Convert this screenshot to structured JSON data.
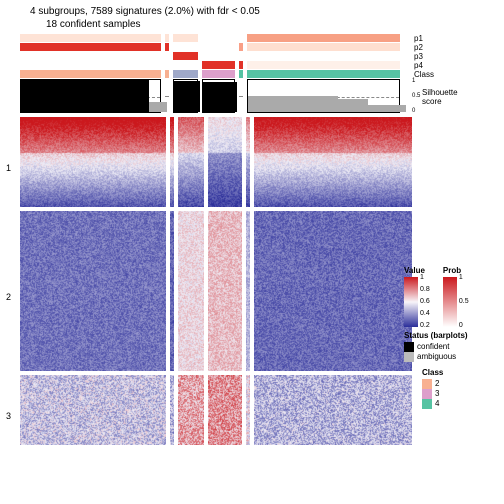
{
  "title": "4 subgroups, 7589 signatures (2.0%) with fdr < 0.05",
  "subtitle": "18 confident samples",
  "block_widths": [
    146,
    4,
    26,
    34,
    4,
    158
  ],
  "block_gap": 4,
  "prob_rows": {
    "labels": [
      "p1",
      "p2",
      "p3",
      "p4"
    ],
    "colors": {
      "p1": [
        "#fee3d6",
        "#fee3d6",
        "#fee3d6",
        "#ffffff",
        "#ffffff",
        "#f7a084"
      ],
      "p2": [
        "#e13127",
        "#e13127",
        "#ffffff",
        "#ffffff",
        "#f99f86",
        "#fedfd0"
      ],
      "p3": [
        "#ffffff",
        "#ffffff",
        "#e13127",
        "#ffffff",
        "#ffffff",
        "#ffffff"
      ],
      "p4": [
        "#ffffff",
        "#ffffff",
        "#ffffff",
        "#e13127",
        "#e13127",
        "#fef0e9"
      ]
    }
  },
  "class_row": {
    "label": "Class",
    "colors": [
      "#f8b091",
      "#f8b091",
      "#9fa9c9",
      "#dd9fcb",
      "#56c3a3",
      "#56c3a3"
    ]
  },
  "silhouette": {
    "label": "Silhouette\nscore",
    "ticks": [
      "1",
      "0.5",
      "0"
    ],
    "fills": [
      {
        "w": 146,
        "bars": [
          {
            "l": 0,
            "w": 128,
            "h": 32,
            "c": "#000"
          },
          {
            "l": 128,
            "w": 18,
            "h": 10,
            "c": "#aaa"
          }
        ]
      },
      {
        "w": 4,
        "bars": []
      },
      {
        "w": 26,
        "bars": [
          {
            "l": 0,
            "w": 26,
            "h": 31,
            "c": "#000"
          }
        ]
      },
      {
        "w": 34,
        "bars": [
          {
            "l": 0,
            "w": 34,
            "h": 30,
            "c": "#000"
          }
        ]
      },
      {
        "w": 4,
        "bars": []
      },
      {
        "w": 158,
        "bars": [
          {
            "l": 0,
            "w": 90,
            "h": 16,
            "c": "#aaa"
          },
          {
            "l": 90,
            "w": 30,
            "h": 13,
            "c": "#aaa"
          },
          {
            "l": 120,
            "w": 38,
            "h": 7,
            "c": "#aaa"
          }
        ]
      }
    ]
  },
  "heatmap": {
    "row_groups": [
      {
        "label": "1",
        "h": 90
      },
      {
        "label": "2",
        "h": 160
      },
      {
        "label": "3",
        "h": 70
      }
    ],
    "palette_low": "#2b2e9a",
    "palette_mid": "#f0eef7",
    "palette_high": "#cb181d",
    "seeds": [
      [
        0.92,
        0.88,
        0.7,
        0.4,
        0.6,
        0.9
      ],
      [
        0.18,
        0.15,
        0.55,
        0.62,
        0.35,
        0.16
      ],
      [
        0.4,
        0.35,
        0.68,
        0.72,
        0.5,
        0.35
      ]
    ]
  },
  "legends": {
    "value": {
      "title": "Value",
      "ticks": [
        "1",
        "0.8",
        "0.6",
        "0.4",
        "0.2"
      ],
      "top": "#cb181d",
      "mid": "#f7f4f9",
      "bot": "#2b2e9a"
    },
    "prob": {
      "title": "Prob",
      "ticks": [
        "1",
        "0.5",
        "0"
      ],
      "top": "#cb181d",
      "bot": "#ffffff"
    },
    "status": {
      "title": "Status (barplots)",
      "items": [
        {
          "c": "#000",
          "l": "confident"
        },
        {
          "c": "#bbb",
          "l": "ambiguous"
        }
      ]
    },
    "class": {
      "title": "Class",
      "items": [
        {
          "c": "#f8b091",
          "l": "2"
        },
        {
          "c": "#dd9fcb",
          "l": "3"
        },
        {
          "c": "#56c3a3",
          "l": "4"
        }
      ]
    }
  }
}
